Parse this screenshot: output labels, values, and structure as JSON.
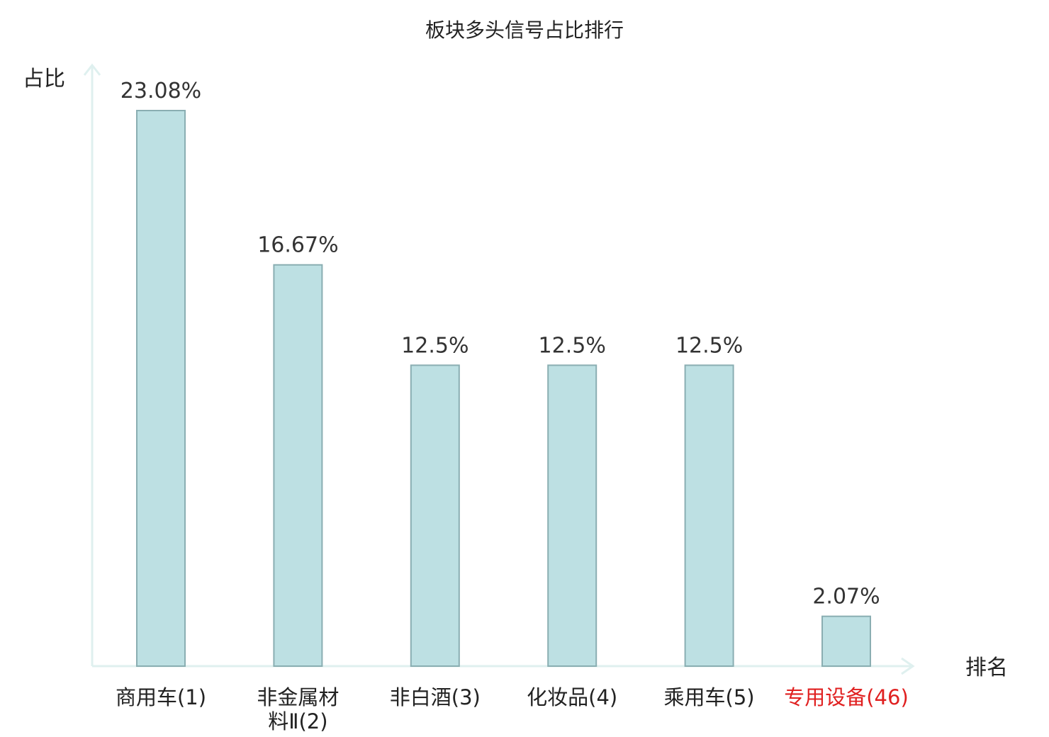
{
  "chart_data": {
    "type": "bar",
    "title": "板块多头信号占比排行",
    "xlabel": "排名",
    "ylabel": "占比",
    "categories": [
      {
        "lines": [
          "商用车(1)"
        ],
        "highlight": false
      },
      {
        "lines": [
          "非金属材",
          "料Ⅱ(2)"
        ],
        "highlight": false
      },
      {
        "lines": [
          "非白酒(3)"
        ],
        "highlight": false
      },
      {
        "lines": [
          "化妆品(4)"
        ],
        "highlight": false
      },
      {
        "lines": [
          "乘用车(5)"
        ],
        "highlight": false
      },
      {
        "lines": [
          "专用设备(46)"
        ],
        "highlight": true
      }
    ],
    "values": [
      23.08,
      16.67,
      12.5,
      12.5,
      12.5,
      2.07
    ],
    "value_labels": [
      "23.08%",
      "16.67%",
      "12.5%",
      "12.5%",
      "12.5%",
      "2.07%"
    ],
    "ylim": [
      0,
      25
    ],
    "grid": false,
    "legend": "none",
    "colors": {
      "bar_fill": "#bde0e3",
      "bar_stroke": "#8aaeb2",
      "axis": "#dff0ef",
      "highlight_text": "#e02020"
    }
  }
}
